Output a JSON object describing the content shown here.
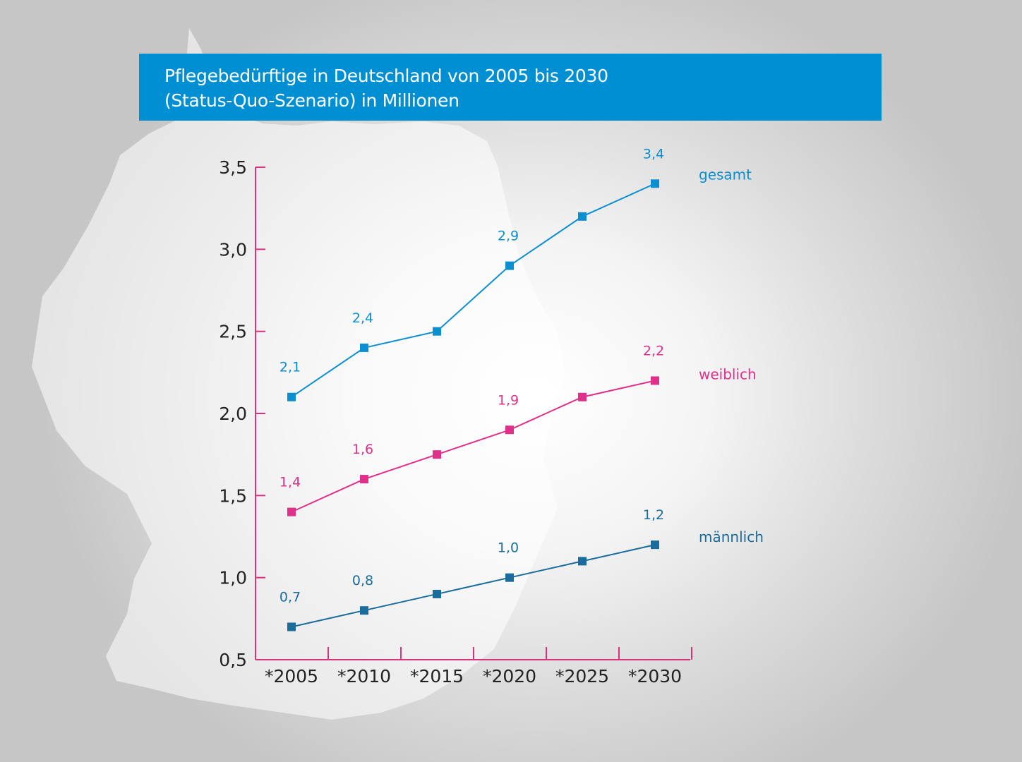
{
  "header": {
    "title_line1": "Pflegebedürftige in Deutschland von 2005 bis 2030",
    "title_line2": "(Status-Quo-Szenario) in Millionen"
  },
  "colors": {
    "title_bar": "#008fd3",
    "axis": "#d6357e",
    "gesamt": "#0a8fd0",
    "weiblich": "#e0308a",
    "maennlich": "#1a6c9c"
  },
  "chart_data": {
    "type": "line",
    "title": "Pflegebedürftige in Deutschland von 2005 bis 2030 (Status-Quo-Szenario) in Millionen",
    "categories": [
      "*2005",
      "*2010",
      "*2015",
      "*2020",
      "*2025",
      "*2030"
    ],
    "ylim": [
      0.5,
      3.5
    ],
    "yticks": [
      "0,5",
      "1,0",
      "1,5",
      "2,0",
      "2,5",
      "3,0",
      "3,5"
    ],
    "ytick_values": [
      0.5,
      1.0,
      1.5,
      2.0,
      2.5,
      3.0,
      3.5
    ],
    "grid": false,
    "series": [
      {
        "name": "gesamt",
        "color": "#0a8fd0",
        "values": [
          2.1,
          2.4,
          2.5,
          2.9,
          3.2,
          3.4
        ],
        "labels": [
          "2,1",
          "2,4",
          "",
          "2,9",
          "",
          "3,4"
        ]
      },
      {
        "name": "weiblich",
        "color": "#e0308a",
        "values": [
          1.4,
          1.6,
          1.75,
          1.9,
          2.1,
          2.2
        ],
        "labels": [
          "1,4",
          "1,6",
          "",
          "1,9",
          "",
          "2,2"
        ]
      },
      {
        "name": "männlich",
        "color": "#1a6c9c",
        "values": [
          0.7,
          0.8,
          0.9,
          1.0,
          1.1,
          1.2
        ],
        "labels": [
          "0,7",
          "0,8",
          "",
          "1,0",
          "",
          "1,2"
        ]
      }
    ]
  }
}
